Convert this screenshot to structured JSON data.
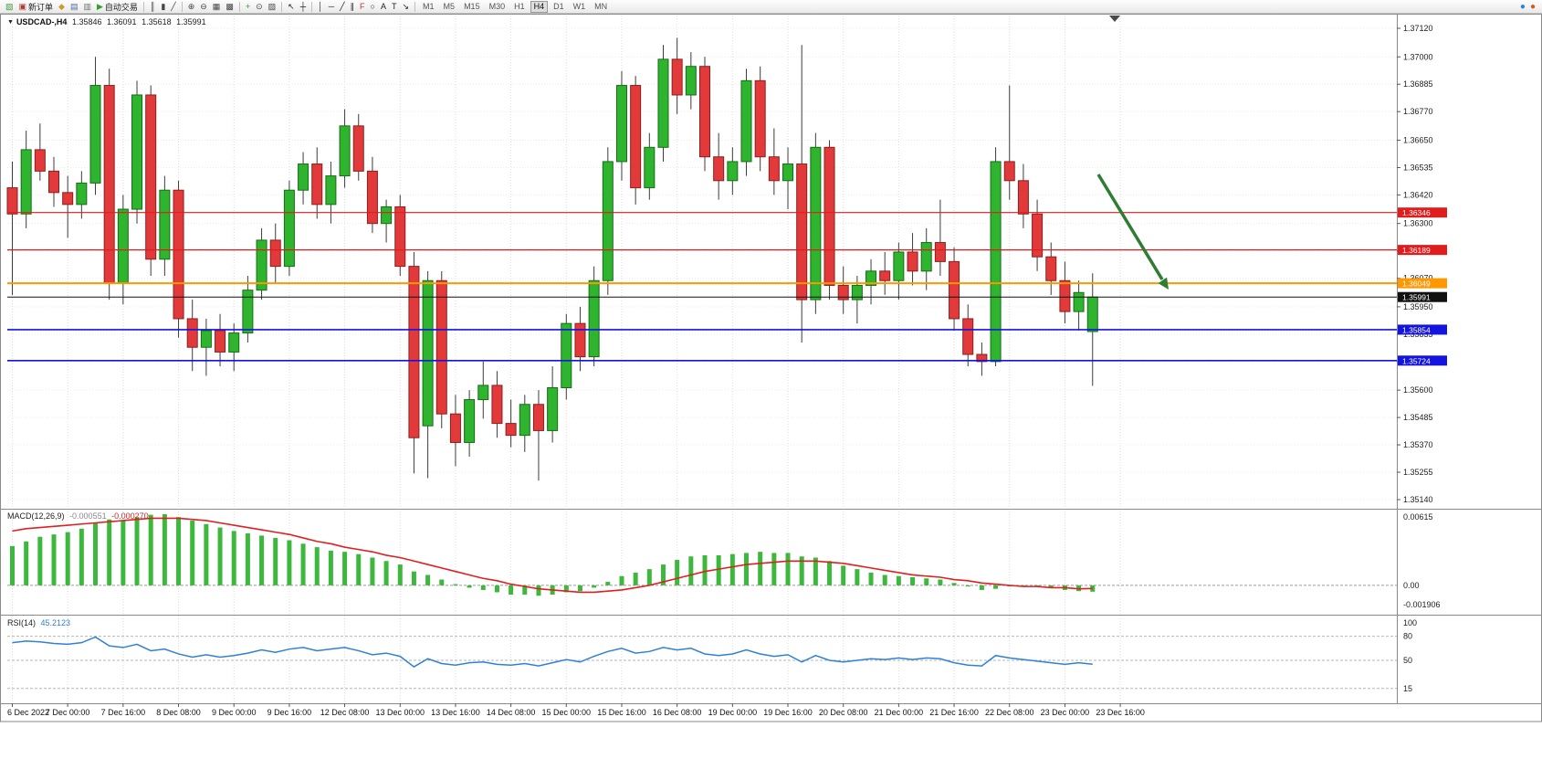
{
  "icons": {
    "dropdown": "▼"
  },
  "toolbar": {
    "groups": [
      {
        "items": [
          {
            "name": "new-chart-button",
            "glyph": "▧",
            "color": "#3f9b3f"
          },
          {
            "name": "new-order-button",
            "glyph": "▣",
            "color": "#b03a3a",
            "label": "新订单"
          },
          {
            "name": "profiles-button",
            "glyph": "◆",
            "color": "#c89b2a"
          },
          {
            "name": "market-watch-button",
            "glyph": "▤",
            "color": "#50699c"
          },
          {
            "name": "navigator-button",
            "glyph": "▥",
            "color": "#6f6f6f"
          },
          {
            "name": "autotrading-button",
            "glyph": "▶",
            "color": "#2ea12e",
            "label": "自动交易"
          }
        ]
      },
      {
        "items": [
          {
            "name": "bar-chart-button",
            "glyph": "║",
            "color": "#444444"
          },
          {
            "name": "candlestick-chart-button",
            "glyph": "▮",
            "color": "#444444"
          },
          {
            "name": "line-chart-button",
            "glyph": "╱",
            "color": "#444444"
          }
        ]
      },
      {
        "items": [
          {
            "name": "zoom-in-button",
            "glyph": "⊕",
            "color": "#444444"
          },
          {
            "name": "zoom-out-button",
            "glyph": "⊖",
            "color": "#444444"
          },
          {
            "name": "tile-windows-button",
            "glyph": "▦",
            "color": "#444444"
          },
          {
            "name": "auto-arrange-button",
            "glyph": "▩",
            "color": "#444444"
          }
        ]
      },
      {
        "items": [
          {
            "name": "indicators-button",
            "glyph": "+",
            "color": "#2ea12e"
          },
          {
            "name": "periods-button",
            "glyph": "⊙",
            "color": "#444444"
          },
          {
            "name": "templates-button",
            "glyph": "▨",
            "color": "#444444"
          }
        ]
      },
      {
        "items": [
          {
            "name": "cursor-button",
            "glyph": "↖",
            "color": "#222222"
          },
          {
            "name": "crosshair-button",
            "glyph": "┼",
            "color": "#222222"
          }
        ]
      },
      {
        "items": [
          {
            "name": "vertical-line-button",
            "glyph": "│",
            "color": "#222222"
          },
          {
            "name": "horizontal-line-button",
            "glyph": "─",
            "color": "#222222"
          },
          {
            "name": "trendline-button",
            "glyph": "╱",
            "color": "#222222"
          },
          {
            "name": "channel-button",
            "glyph": "∥",
            "color": "#222222"
          },
          {
            "name": "fibonacci-button",
            "glyph": "F",
            "color": "#b03a3a"
          },
          {
            "name": "shapes-button",
            "glyph": "○",
            "color": "#222222"
          },
          {
            "name": "text-button",
            "glyph": "A",
            "color": "#222222"
          },
          {
            "name": "label-button",
            "glyph": "T",
            "color": "#222222"
          },
          {
            "name": "arrows-button",
            "glyph": "↘",
            "color": "#222222"
          }
        ]
      }
    ],
    "timeframes": {
      "items": [
        "M1",
        "M5",
        "M15",
        "M30",
        "H1",
        "H4",
        "D1",
        "W1",
        "MN"
      ],
      "active": "H4"
    },
    "right_icons": [
      {
        "name": "community-icon",
        "glyph": "●",
        "color": "#2f81d6"
      },
      {
        "name": "alert-icon",
        "glyph": "●",
        "color": "#e0541e"
      }
    ]
  },
  "chart": {
    "title": {
      "symbol": "USDCAD-,H4",
      "open": "1.35846",
      "high": "1.36091",
      "low": "1.35618",
      "close": "1.35991"
    }
  },
  "chart_data": {
    "type": "candlestick",
    "symbol": "USDCAD",
    "timeframe": "H4",
    "style": {
      "up": "#2eb42e",
      "up_border": "#156e15",
      "down": "#e23a3a",
      "down_border": "#8f1d1d",
      "wick": "#3c3c3c"
    },
    "x_labels": [
      "6 Dec 2022",
      "7 Dec 00:00",
      "7 Dec 16:00",
      "8 Dec 08:00",
      "9 Dec 00:00",
      "9 Dec 16:00",
      "12 Dec 08:00",
      "13 Dec 00:00",
      "13 Dec 16:00",
      "14 Dec 08:00",
      "15 Dec 00:00",
      "15 Dec 16:00",
      "16 Dec 08:00",
      "19 Dec 00:00",
      "19 Dec 16:00",
      "20 Dec 08:00",
      "21 Dec 00:00",
      "21 Dec 16:00",
      "22 Dec 08:00",
      "23 Dec 00:00",
      "23 Dec 16:00"
    ],
    "bars_per_label": 4,
    "y_axis": {
      "min": 1.3514,
      "max": 1.3712,
      "ticks": [
        "1.37120",
        "1.37000",
        "1.36885",
        "1.36770",
        "1.36650",
        "1.36535",
        "1.36420",
        "1.36300",
        "1.36185",
        "1.36070",
        "1.35950",
        "1.35835",
        "1.35720",
        "1.35600",
        "1.35485",
        "1.35370",
        "1.35255",
        "1.35140"
      ]
    },
    "levels": [
      {
        "name": "resistance-line-1",
        "price": 1.36346,
        "label": "1.36346",
        "color": "#e01c1c",
        "width": 1.2
      },
      {
        "name": "resistance-line-2",
        "price": 1.36189,
        "label": "1.36189",
        "color": "#e01c1c",
        "width": 1.2
      },
      {
        "name": "pivot-line",
        "price": 1.36049,
        "label": "1.36049",
        "color": "#ff9800",
        "width": 2
      },
      {
        "name": "current-price-line",
        "price": 1.35991,
        "label": "1.35991",
        "color": "#111111",
        "width": 1
      },
      {
        "name": "support-line-1",
        "price": 1.35854,
        "label": "1.35854",
        "color": "#1414e0",
        "width": 1.6
      },
      {
        "name": "support-line-2",
        "price": 1.35724,
        "label": "1.35724",
        "color": "#1414e0",
        "width": 1.6
      }
    ],
    "annotation_arrow": {
      "color": "#2e7d32",
      "direction": "down-right"
    },
    "candles": [
      [
        1.3645,
        1.3656,
        1.36,
        1.3634
      ],
      [
        1.3634,
        1.3669,
        1.3628,
        1.3661
      ],
      [
        1.3661,
        1.3672,
        1.3648,
        1.3652
      ],
      [
        1.3652,
        1.3658,
        1.3637,
        1.3643
      ],
      [
        1.3643,
        1.365,
        1.3624,
        1.3638
      ],
      [
        1.3638,
        1.3652,
        1.3632,
        1.3647
      ],
      [
        1.3647,
        1.37,
        1.3642,
        1.3688
      ],
      [
        1.3688,
        1.3695,
        1.3598,
        1.3605
      ],
      [
        1.3605,
        1.3642,
        1.3596,
        1.3636
      ],
      [
        1.3636,
        1.369,
        1.363,
        1.3684
      ],
      [
        1.3684,
        1.3688,
        1.3608,
        1.3615
      ],
      [
        1.3615,
        1.365,
        1.3608,
        1.3644
      ],
      [
        1.3644,
        1.3648,
        1.3582,
        1.359
      ],
      [
        1.359,
        1.3598,
        1.3568,
        1.3578
      ],
      [
        1.3578,
        1.359,
        1.3566,
        1.3585
      ],
      [
        1.3585,
        1.3592,
        1.357,
        1.3576
      ],
      [
        1.3576,
        1.3588,
        1.3568,
        1.3584
      ],
      [
        1.3584,
        1.3608,
        1.358,
        1.3602
      ],
      [
        1.3602,
        1.3628,
        1.3598,
        1.3623
      ],
      [
        1.3623,
        1.363,
        1.3605,
        1.3612
      ],
      [
        1.3612,
        1.3648,
        1.3608,
        1.3644
      ],
      [
        1.3644,
        1.366,
        1.3638,
        1.3655
      ],
      [
        1.3655,
        1.3662,
        1.3632,
        1.3638
      ],
      [
        1.3638,
        1.3656,
        1.363,
        1.365
      ],
      [
        1.365,
        1.3678,
        1.3645,
        1.3671
      ],
      [
        1.3671,
        1.3676,
        1.3648,
        1.3652
      ],
      [
        1.3652,
        1.3658,
        1.3626,
        1.363
      ],
      [
        1.363,
        1.364,
        1.3622,
        1.3637
      ],
      [
        1.3637,
        1.3642,
        1.3608,
        1.3612
      ],
      [
        1.3612,
        1.3618,
        1.3525,
        1.354
      ],
      [
        1.3545,
        1.361,
        1.3523,
        1.3606
      ],
      [
        1.3606,
        1.361,
        1.3544,
        1.355
      ],
      [
        1.355,
        1.3558,
        1.3528,
        1.3538
      ],
      [
        1.3538,
        1.356,
        1.3532,
        1.3556
      ],
      [
        1.3556,
        1.3572,
        1.3548,
        1.3562
      ],
      [
        1.3562,
        1.3568,
        1.354,
        1.3546
      ],
      [
        1.3546,
        1.3556,
        1.3536,
        1.3541
      ],
      [
        1.3541,
        1.3558,
        1.3534,
        1.3554
      ],
      [
        1.3554,
        1.356,
        1.3522,
        1.3543
      ],
      [
        1.3543,
        1.357,
        1.3538,
        1.3561
      ],
      [
        1.3561,
        1.3592,
        1.3556,
        1.3588
      ],
      [
        1.3588,
        1.3595,
        1.3568,
        1.3574
      ],
      [
        1.3574,
        1.3612,
        1.357,
        1.3606
      ],
      [
        1.3606,
        1.3662,
        1.36,
        1.3656
      ],
      [
        1.3656,
        1.3694,
        1.3648,
        1.3688
      ],
      [
        1.3688,
        1.3692,
        1.3638,
        1.3645
      ],
      [
        1.3645,
        1.3668,
        1.364,
        1.3662
      ],
      [
        1.3662,
        1.3705,
        1.3656,
        1.3699
      ],
      [
        1.3699,
        1.3708,
        1.3676,
        1.3684
      ],
      [
        1.3684,
        1.3702,
        1.3678,
        1.3696
      ],
      [
        1.3696,
        1.37,
        1.3652,
        1.3658
      ],
      [
        1.3658,
        1.3668,
        1.364,
        1.3648
      ],
      [
        1.3648,
        1.3662,
        1.3642,
        1.3656
      ],
      [
        1.3656,
        1.3695,
        1.365,
        1.369
      ],
      [
        1.369,
        1.3696,
        1.3652,
        1.3658
      ],
      [
        1.3658,
        1.367,
        1.3642,
        1.3648
      ],
      [
        1.3648,
        1.3662,
        1.3636,
        1.3655
      ],
      [
        1.3655,
        1.3705,
        1.358,
        1.3598
      ],
      [
        1.3598,
        1.3668,
        1.3592,
        1.3662
      ],
      [
        1.3662,
        1.3665,
        1.3598,
        1.3604
      ],
      [
        1.3604,
        1.3612,
        1.3592,
        1.3598
      ],
      [
        1.3598,
        1.3608,
        1.3588,
        1.3604
      ],
      [
        1.3604,
        1.3615,
        1.3596,
        1.361
      ],
      [
        1.361,
        1.3618,
        1.36,
        1.3606
      ],
      [
        1.3606,
        1.3622,
        1.3598,
        1.3618
      ],
      [
        1.3618,
        1.3626,
        1.3604,
        1.361
      ],
      [
        1.361,
        1.3628,
        1.3602,
        1.3622
      ],
      [
        1.3622,
        1.364,
        1.3608,
        1.3614
      ],
      [
        1.3614,
        1.362,
        1.3585,
        1.359
      ],
      [
        1.359,
        1.3596,
        1.357,
        1.3575
      ],
      [
        1.3575,
        1.358,
        1.3566,
        1.3572
      ],
      [
        1.3572,
        1.3662,
        1.357,
        1.3656
      ],
      [
        1.3656,
        1.3688,
        1.364,
        1.3648
      ],
      [
        1.3648,
        1.3655,
        1.3628,
        1.3634
      ],
      [
        1.3634,
        1.364,
        1.361,
        1.3616
      ],
      [
        1.3616,
        1.3622,
        1.36,
        1.3606
      ],
      [
        1.3606,
        1.3614,
        1.3588,
        1.3593
      ],
      [
        1.3593,
        1.3606,
        1.3585,
        1.3601
      ],
      [
        1.35846,
        1.36091,
        1.35618,
        1.35991
      ]
    ],
    "macd": {
      "label": "MACD(12,26,9)",
      "value_main": "-0.000551",
      "value_signal": "-0.000270",
      "max": 0.00615,
      "min": -0.001906,
      "axis_labels": [
        "0.00615",
        "0.00",
        "-0.001906"
      ],
      "histogram_color": "#3cb83c",
      "signal_color": "#e02020",
      "histogram": [
        0.0034,
        0.0038,
        0.0042,
        0.0044,
        0.0046,
        0.0049,
        0.0054,
        0.0057,
        0.0056,
        0.0059,
        0.0061,
        0.00615,
        0.0059,
        0.0056,
        0.0053,
        0.005,
        0.0047,
        0.0045,
        0.0043,
        0.0041,
        0.0039,
        0.0036,
        0.0033,
        0.003,
        0.0029,
        0.0027,
        0.0024,
        0.0021,
        0.0018,
        0.0012,
        0.0009,
        0.0005,
        0.0001,
        -0.0002,
        -0.0004,
        -0.0006,
        -0.0008,
        -0.0008,
        -0.0009,
        -0.0008,
        -0.0006,
        -0.0005,
        -0.0002,
        0.0003,
        0.0008,
        0.0011,
        0.0014,
        0.0018,
        0.0022,
        0.0025,
        0.0026,
        0.0026,
        0.0027,
        0.0028,
        0.0029,
        0.0028,
        0.0028,
        0.0025,
        0.0024,
        0.0021,
        0.0017,
        0.0014,
        0.0011,
        0.0009,
        0.0008,
        0.0007,
        0.0006,
        0.0005,
        0.0002,
        -0.0001,
        -0.0004,
        -0.0003,
        -0.0001,
        0.0,
        -0.0001,
        -0.0002,
        -0.0004,
        -0.0005,
        -0.000551
      ],
      "signal": [
        0.0047,
        0.0049,
        0.005,
        0.0051,
        0.0052,
        0.0053,
        0.0054,
        0.0055,
        0.0056,
        0.0057,
        0.0058,
        0.0058,
        0.0058,
        0.0057,
        0.0056,
        0.0054,
        0.0052,
        0.005,
        0.0048,
        0.0046,
        0.0044,
        0.0041,
        0.0038,
        0.0036,
        0.0033,
        0.0031,
        0.0029,
        0.0026,
        0.0024,
        0.0021,
        0.0018,
        0.0015,
        0.0012,
        0.0009,
        0.0006,
        0.0004,
        0.0001,
        -0.0001,
        -0.0003,
        -0.0004,
        -0.0005,
        -0.0006,
        -0.0006,
        -0.0005,
        -0.0004,
        -0.0002,
        0.0,
        0.0003,
        0.0006,
        0.0009,
        0.0012,
        0.0014,
        0.0016,
        0.0018,
        0.0019,
        0.002,
        0.0021,
        0.0021,
        0.0021,
        0.002,
        0.0019,
        0.0017,
        0.0015,
        0.0013,
        0.0011,
        0.0009,
        0.0008,
        0.0007,
        0.0005,
        0.0004,
        0.0002,
        0.0001,
        0.0,
        -0.0001,
        -0.0001,
        -0.0002,
        -0.0002,
        -0.0003,
        -0.00027
      ]
    },
    "rsi": {
      "label": "RSI(14)",
      "value": "45.2123",
      "color": "#2f81d6",
      "levels": [
        80,
        50,
        15
      ],
      "axis_labels": [
        "100",
        "80",
        "50",
        "15"
      ],
      "values": [
        72,
        74,
        73,
        71,
        70,
        72,
        79,
        68,
        66,
        70,
        62,
        64,
        58,
        54,
        57,
        54,
        56,
        59,
        63,
        60,
        64,
        66,
        62,
        64,
        66,
        62,
        57,
        59,
        55,
        42,
        52,
        46,
        44,
        47,
        48,
        45,
        44,
        46,
        43,
        47,
        51,
        48,
        55,
        61,
        65,
        59,
        61,
        66,
        63,
        65,
        58,
        56,
        58,
        63,
        58,
        55,
        57,
        48,
        56,
        50,
        48,
        50,
        52,
        51,
        53,
        51,
        53,
        52,
        47,
        44,
        43,
        56,
        53,
        51,
        49,
        47,
        45,
        47,
        45.2123
      ]
    }
  }
}
